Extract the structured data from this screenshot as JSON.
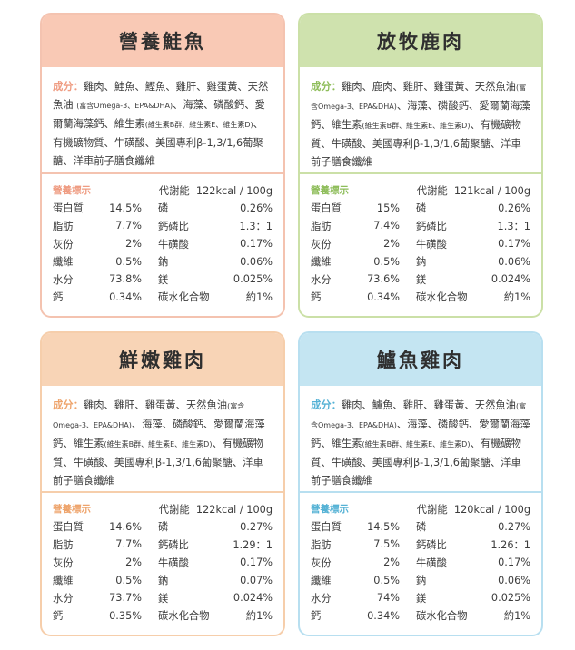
{
  "common": {
    "ingredient_label": "成分：",
    "nutrition_label": "營養標示",
    "metabolic_label": "代謝能"
  },
  "cards": [
    {
      "title": "營養鮭魚",
      "ing_a": "雞肉、鮭魚、鰹魚、雞肝、雞蛋黃、天然魚油 ",
      "ing_s1": "(富含Omega-3、EPA&DHA)",
      "ing_b": "、海藻、磷酸鈣、愛爾蘭海藻鈣、維生素",
      "ing_s2": "(維生素B群、維生素E、維生素D)",
      "ing_c": "、有機礦物質、牛磺酸、美國專利β-1,3/1,6葡聚醣、洋車前子膳食纖維",
      "kcal": "122kcal / 100g",
      "rows": [
        {
          "l1": "蛋白質",
          "v1": "14.5%",
          "l2": "磷",
          "v2": "0.26%"
        },
        {
          "l1": "脂肪",
          "v1": "7.7%",
          "l2": "鈣磷比",
          "v2": "1.3：1"
        },
        {
          "l1": "灰份",
          "v1": "2%",
          "l2": "牛磺酸",
          "v2": "0.17%"
        },
        {
          "l1": "纖維",
          "v1": "0.5%",
          "l2": "鈉",
          "v2": "0.06%"
        },
        {
          "l1": "水分",
          "v1": "73.8%",
          "l2": "鎂",
          "v2": "0.025%"
        },
        {
          "l1": "鈣",
          "v1": "0.34%",
          "l2": "碳水化合物",
          "v2": "約1%"
        }
      ]
    },
    {
      "title": "放牧鹿肉",
      "ing_a": "雞肉、鹿肉、雞肝、雞蛋黃、天然魚油",
      "ing_s1": "(富含Omega-3、EPA&DHA)",
      "ing_b": "、海藻、磷酸鈣、愛爾蘭海藻鈣、維生素",
      "ing_s2": "(維生素B群、維生素E、維生素D)",
      "ing_c": "、有機礦物質、牛磺酸、美國專利β-1,3/1,6葡聚醣、洋車前子膳食纖維",
      "kcal": "121kcal / 100g",
      "rows": [
        {
          "l1": "蛋白質",
          "v1": "15%",
          "l2": "磷",
          "v2": "0.26%"
        },
        {
          "l1": "脂肪",
          "v1": "7.4%",
          "l2": "鈣磷比",
          "v2": "1.3：1"
        },
        {
          "l1": "灰份",
          "v1": "2%",
          "l2": "牛磺酸",
          "v2": "0.17%"
        },
        {
          "l1": "纖維",
          "v1": "0.5%",
          "l2": "鈉",
          "v2": "0.06%"
        },
        {
          "l1": "水分",
          "v1": "73.6%",
          "l2": "鎂",
          "v2": "0.024%"
        },
        {
          "l1": "鈣",
          "v1": "0.34%",
          "l2": "碳水化合物",
          "v2": "約1%"
        }
      ]
    },
    {
      "title": "鮮嫩雞肉",
      "ing_a": "雞肉、雞肝、雞蛋黃、天然魚油",
      "ing_s1": "(富含Omega-3、EPA&DHA)",
      "ing_b": "、海藻、磷酸鈣、愛爾蘭海藻鈣、維生素",
      "ing_s2": "(維生素B群、維生素E、維生素D)",
      "ing_c": "、有機礦物質、牛磺酸、美國專利β-1,3/1,6葡聚醣、洋車前子膳食纖維",
      "kcal": "122kcal / 100g",
      "rows": [
        {
          "l1": "蛋白質",
          "v1": "14.6%",
          "l2": "磷",
          "v2": "0.27%"
        },
        {
          "l1": "脂肪",
          "v1": "7.7%",
          "l2": "鈣磷比",
          "v2": "1.29：1"
        },
        {
          "l1": "灰份",
          "v1": "2%",
          "l2": "牛磺酸",
          "v2": "0.17%"
        },
        {
          "l1": "纖維",
          "v1": "0.5%",
          "l2": "鈉",
          "v2": "0.07%"
        },
        {
          "l1": "水分",
          "v1": "73.7%",
          "l2": "鎂",
          "v2": "0.024%"
        },
        {
          "l1": "鈣",
          "v1": "0.35%",
          "l2": "碳水化合物",
          "v2": "約1%"
        }
      ]
    },
    {
      "title": "鱸魚雞肉",
      "ing_a": "雞肉、鱸魚、雞肝、雞蛋黃、天然魚油",
      "ing_s1": "(富含Omega-3、EPA&DHA)",
      "ing_b": "、海藻、磷酸鈣、愛爾蘭海藻鈣、維生素",
      "ing_s2": "(維生素B群、維生素E、維生素D)",
      "ing_c": "、有機礦物質、牛磺酸、美國專利β-1,3/1,6葡聚醣、洋車前子膳食纖維",
      "kcal": "120kcal / 100g",
      "rows": [
        {
          "l1": "蛋白質",
          "v1": "14.5%",
          "l2": "磷",
          "v2": "0.27%"
        },
        {
          "l1": "脂肪",
          "v1": "7.5%",
          "l2": "鈣磷比",
          "v2": "1.26：1"
        },
        {
          "l1": "灰份",
          "v1": "2%",
          "l2": "牛磺酸",
          "v2": "0.17%"
        },
        {
          "l1": "纖維",
          "v1": "0.5%",
          "l2": "鈉",
          "v2": "0.06%"
        },
        {
          "l1": "水分",
          "v1": "74%",
          "l2": "鎂",
          "v2": "0.025%"
        },
        {
          "l1": "鈣",
          "v1": "0.34%",
          "l2": "碳水化合物",
          "v2": "約1%"
        }
      ]
    }
  ]
}
